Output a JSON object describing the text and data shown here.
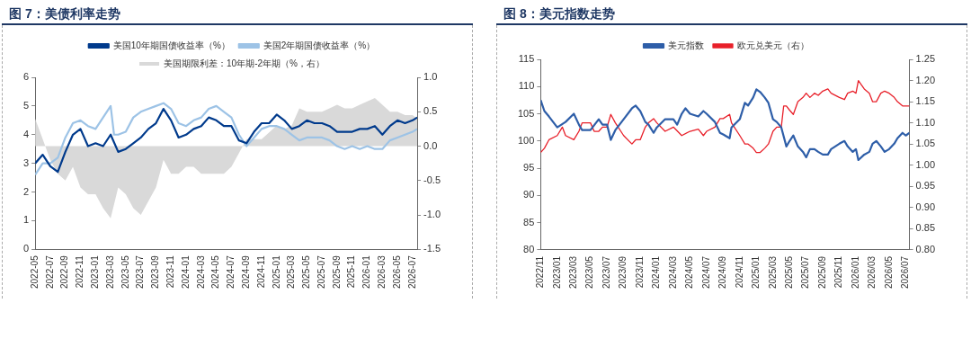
{
  "chart_data": [
    {
      "type": "line",
      "title": "图 7：美债利率走势",
      "series": [
        {
          "name": "美国期限利差：10年期-2年期（%，右）",
          "type": "area",
          "axis": "y2",
          "color": "#d9d9d9",
          "x": [
            "2022-05",
            "2022-06",
            "2022-07",
            "2022-08",
            "2022-09",
            "2022-10",
            "2022-11",
            "2022-12",
            "2023-01",
            "2023-02",
            "2023-03",
            "2023-04",
            "2023-05",
            "2023-06",
            "2023-07",
            "2023-08",
            "2023-09",
            "2023-10",
            "2023-11",
            "2023-12",
            "2024-01",
            "2024-02",
            "2024-03",
            "2024-04",
            "2024-05",
            "2024-06",
            "2024-07",
            "2024-08",
            "2024-09",
            "2024-10",
            "2024-11",
            "2024-12",
            "2025-01",
            "2025-02",
            "2025-03",
            "2025-04",
            "2025-05",
            "2025-06",
            "2025-07",
            "2025-08",
            "2025-09",
            "2025-10",
            "2025-11",
            "2025-12",
            "2026-01",
            "2026-02",
            "2026-03",
            "2026-04",
            "2026-05",
            "2026-06",
            "2026-07",
            "2026-07-20"
          ],
          "values": [
            0.4,
            0.1,
            -0.2,
            -0.4,
            -0.5,
            -0.3,
            -0.6,
            -0.7,
            -0.7,
            -0.9,
            -1.05,
            -0.6,
            -0.7,
            -0.9,
            -1.0,
            -0.8,
            -0.6,
            -0.2,
            -0.4,
            -0.4,
            -0.3,
            -0.3,
            -0.4,
            -0.4,
            -0.4,
            -0.4,
            -0.3,
            -0.1,
            0.1,
            0.1,
            0.1,
            0.2,
            0.3,
            0.25,
            0.3,
            0.55,
            0.5,
            0.5,
            0.5,
            0.55,
            0.6,
            0.55,
            0.55,
            0.6,
            0.65,
            0.7,
            0.6,
            0.5,
            0.5,
            0.45,
            0.45,
            0.4
          ]
        },
        {
          "name": "美国10年期国债收益率（%）",
          "color": "#003a8c",
          "x": [
            "2022-05",
            "2022-06",
            "2022-07",
            "2022-08",
            "2022-09",
            "2022-10",
            "2022-11",
            "2022-12",
            "2023-01",
            "2023-02",
            "2023-03",
            "2023-04",
            "2023-05",
            "2023-06",
            "2023-07",
            "2023-08",
            "2023-09",
            "2023-10",
            "2023-11",
            "2023-12",
            "2024-01",
            "2024-02",
            "2024-03",
            "2024-04",
            "2024-05",
            "2024-06",
            "2024-07",
            "2024-08",
            "2024-09",
            "2024-10",
            "2024-11",
            "2024-12",
            "2025-01",
            "2025-02",
            "2025-03",
            "2025-04",
            "2025-05",
            "2025-06",
            "2025-07",
            "2025-08",
            "2025-09",
            "2025-10",
            "2025-11",
            "2025-12",
            "2026-01",
            "2026-02",
            "2026-03",
            "2026-04",
            "2026-05",
            "2026-06",
            "2026-07",
            "2026-07-20"
          ],
          "values": [
            3.0,
            3.3,
            2.9,
            2.7,
            3.4,
            4.0,
            4.2,
            3.6,
            3.7,
            3.6,
            4.0,
            3.4,
            3.5,
            3.7,
            3.9,
            4.2,
            4.4,
            4.9,
            4.5,
            3.9,
            4.0,
            4.2,
            4.3,
            4.6,
            4.5,
            4.3,
            4.3,
            3.8,
            3.7,
            4.1,
            4.4,
            4.4,
            4.7,
            4.5,
            4.2,
            4.3,
            4.5,
            4.4,
            4.4,
            4.3,
            4.1,
            4.1,
            4.1,
            4.2,
            4.2,
            4.3,
            4.0,
            4.3,
            4.5,
            4.4,
            4.5,
            4.6
          ]
        },
        {
          "name": "美国2年期国债收益率（%）",
          "color": "#9dc3e6",
          "x": [
            "2022-05",
            "2022-06",
            "2022-07",
            "2022-08",
            "2022-09",
            "2022-10",
            "2022-11",
            "2022-12",
            "2023-01",
            "2023-02",
            "2023-03",
            "2023-03-15",
            "2023-04",
            "2023-05",
            "2023-06",
            "2023-07",
            "2023-08",
            "2023-09",
            "2023-10",
            "2023-11",
            "2023-12",
            "2024-01",
            "2024-02",
            "2024-03",
            "2024-04",
            "2024-05",
            "2024-06",
            "2024-07",
            "2024-08",
            "2024-09",
            "2024-10",
            "2024-11",
            "2024-12",
            "2025-01",
            "2025-02",
            "2025-03",
            "2025-04",
            "2025-05",
            "2025-06",
            "2025-07",
            "2025-08",
            "2025-09",
            "2025-10",
            "2025-11",
            "2025-12",
            "2026-01",
            "2026-02",
            "2026-03",
            "2026-04",
            "2026-05",
            "2026-06",
            "2026-07",
            "2026-07-20"
          ],
          "values": [
            2.6,
            3.0,
            3.0,
            3.2,
            3.9,
            4.4,
            4.5,
            4.3,
            4.2,
            4.6,
            5.0,
            4.0,
            4.0,
            4.1,
            4.6,
            4.8,
            4.9,
            5.0,
            5.1,
            4.9,
            4.4,
            4.3,
            4.5,
            4.6,
            4.9,
            5.0,
            4.8,
            4.6,
            4.0,
            3.6,
            3.9,
            4.2,
            4.3,
            4.3,
            4.2,
            4.0,
            3.8,
            3.9,
            3.9,
            3.9,
            3.8,
            3.6,
            3.5,
            3.6,
            3.5,
            3.6,
            3.5,
            3.5,
            3.8,
            3.9,
            4.0,
            4.1,
            4.2
          ]
        }
      ],
      "xlim": [
        "2022-05",
        "2026-07-20"
      ],
      "xticks": [
        "2022-05",
        "2022-07",
        "2022-09",
        "2022-11",
        "2023-01",
        "2023-03",
        "2023-05",
        "2023-07",
        "2023-09",
        "2023-11",
        "2024-01",
        "2024-03",
        "2024-05",
        "2024-07",
        "2024-09",
        "2024-11",
        "2025-01",
        "2025-03",
        "2025-05",
        "2025-07",
        "2025-09",
        "2025-11",
        "2026-01",
        "2026-03",
        "2026-05",
        "2026-07"
      ],
      "ylim": [
        0,
        6
      ],
      "yticks": [
        0,
        1,
        2,
        3,
        4,
        5,
        6
      ],
      "y2lim": [
        -1.5,
        1.0
      ],
      "y2ticks": [
        {
          "value": -1.5,
          "label": "-1.5"
        },
        {
          "value": -1.0,
          "label": "-1.0"
        },
        {
          "value": -0.5,
          "label": "-0.5"
        },
        {
          "value": 0,
          "label": "0.0"
        },
        {
          "value": 0.5,
          "label": "0.5"
        },
        {
          "value": 1.0,
          "label": "1.0"
        }
      ],
      "legend": "top"
    },
    {
      "type": "line",
      "title": "图 8：美元指数走势",
      "series": [
        {
          "name": "美元指数",
          "color": "#2e5ea8",
          "x": [
            "2022-11",
            "2022-11-15",
            "2022-12",
            "2023-01",
            "2023-02",
            "2023-03",
            "2023-03-20",
            "2023-04",
            "2023-05",
            "2023-06",
            "2023-06-15",
            "2023-07",
            "2023-07-15",
            "2023-08",
            "2023-09",
            "2023-10",
            "2023-10-15",
            "2023-11",
            "2023-11-20",
            "2023-12",
            "2023-12-20",
            "2024-01",
            "2024-02",
            "2024-03",
            "2024-03-15",
            "2024-04",
            "2024-04-15",
            "2024-05",
            "2024-06",
            "2024-06-20",
            "2024-07",
            "2024-08",
            "2024-08-20",
            "2024-09",
            "2024-09-25",
            "2024-10",
            "2024-11",
            "2024-11-20",
            "2024-12",
            "2024-12-20",
            "2025-01",
            "2025-01-15",
            "2025-02",
            "2025-02-15",
            "2025-03",
            "2025-03-15",
            "2025-04",
            "2025-04-20",
            "2025-05",
            "2025-05-15",
            "2025-06",
            "2025-06-20",
            "2025-07",
            "2025-07-15",
            "2025-08",
            "2025-08-15",
            "2025-09",
            "2025-09-20",
            "2025-10",
            "2025-11",
            "2025-11-20",
            "2025-12",
            "2025-12-20",
            "2026-01",
            "2026-01-10",
            "2026-02",
            "2026-02-20",
            "2026-03",
            "2026-03-15",
            "2026-04",
            "2026-04-15",
            "2026-05",
            "2026-05-20",
            "2026-06",
            "2026-06-20",
            "2026-07",
            "2026-07-15"
          ],
          "values": [
            107.5,
            105.5,
            104.5,
            102.5,
            103.5,
            105,
            103,
            102,
            102,
            104,
            103,
            103,
            100.2,
            102,
            104,
            106,
            106.5,
            105.5,
            103.5,
            103,
            101.5,
            102.5,
            104,
            104,
            103,
            105,
            106,
            105,
            104.5,
            105.5,
            105,
            103.5,
            101.5,
            101.2,
            100.5,
            102.5,
            104,
            107,
            106.5,
            108,
            109.5,
            109,
            108,
            107,
            104,
            103.5,
            102.5,
            99,
            100,
            101,
            99,
            98,
            97,
            98.5,
            98.5,
            98,
            97.5,
            97.5,
            98.5,
            99.5,
            100,
            99,
            98,
            98.5,
            96.5,
            97.5,
            98,
            99.5,
            100,
            99,
            98,
            98.5,
            99.5,
            100.5,
            101.5,
            101,
            101.5
          ]
        },
        {
          "name": "欧元兑美元（右）",
          "axis": "y2",
          "color": "#e8202a",
          "x": [
            "2022-11",
            "2022-11-15",
            "2022-12",
            "2023-01",
            "2023-01-20",
            "2023-02",
            "2023-03",
            "2023-03-20",
            "2023-04",
            "2023-05",
            "2023-05-15",
            "2023-06",
            "2023-06-15",
            "2023-07",
            "2023-07-15",
            "2023-08",
            "2023-09",
            "2023-10",
            "2023-10-15",
            "2023-11",
            "2023-11-20",
            "2023-12",
            "2023-12-20",
            "2024-01",
            "2024-02",
            "2024-03",
            "2024-04",
            "2024-05",
            "2024-06",
            "2024-06-20",
            "2024-07",
            "2024-08",
            "2024-08-20",
            "2024-09",
            "2024-09-25",
            "2024-10",
            "2024-11",
            "2024-11-20",
            "2024-12",
            "2024-12-20",
            "2025-01",
            "2025-01-15",
            "2025-02",
            "2025-02-15",
            "2025-03",
            "2025-03-15",
            "2025-04",
            "2025-04-10",
            "2025-04-20",
            "2025-05",
            "2025-05-15",
            "2025-06",
            "2025-06-20",
            "2025-07",
            "2025-07-15",
            "2025-08",
            "2025-08-15",
            "2025-09",
            "2025-09-20",
            "2025-10",
            "2025-11",
            "2025-11-20",
            "2025-12",
            "2025-12-20",
            "2026-01",
            "2026-01-10",
            "2026-02",
            "2026-02-20",
            "2026-03",
            "2026-03-15",
            "2026-04",
            "2026-04-15",
            "2026-05",
            "2026-05-20",
            "2026-06",
            "2026-06-20",
            "2026-07",
            "2026-07-15"
          ],
          "values": [
            1.03,
            1.04,
            1.06,
            1.07,
            1.09,
            1.07,
            1.06,
            1.08,
            1.1,
            1.1,
            1.08,
            1.08,
            1.09,
            1.09,
            1.12,
            1.1,
            1.07,
            1.05,
            1.06,
            1.06,
            1.09,
            1.1,
            1.11,
            1.1,
            1.08,
            1.09,
            1.07,
            1.08,
            1.085,
            1.07,
            1.08,
            1.09,
            1.11,
            1.11,
            1.12,
            1.1,
            1.07,
            1.05,
            1.05,
            1.04,
            1.03,
            1.03,
            1.04,
            1.05,
            1.08,
            1.09,
            1.09,
            1.14,
            1.14,
            1.13,
            1.12,
            1.15,
            1.16,
            1.17,
            1.16,
            1.17,
            1.165,
            1.175,
            1.18,
            1.17,
            1.16,
            1.155,
            1.17,
            1.175,
            1.17,
            1.2,
            1.18,
            1.17,
            1.15,
            1.15,
            1.17,
            1.175,
            1.17,
            1.16,
            1.15,
            1.14,
            1.14,
            1.14
          ]
        }
      ],
      "xlim": [
        "2022-11",
        "2026-07-15"
      ],
      "xticks": [
        {
          "value": "2022-11",
          "label": "2022/11"
        },
        {
          "value": "2023-01",
          "label": "2023/01"
        },
        {
          "value": "2023-03",
          "label": "2023/03"
        },
        {
          "value": "2023-05",
          "label": "2023/05"
        },
        {
          "value": "2023-07",
          "label": "2023/07"
        },
        {
          "value": "2023-09",
          "label": "2023/09"
        },
        {
          "value": "2023-11",
          "label": "2023/11"
        },
        {
          "value": "2024-01",
          "label": "2024/01"
        },
        {
          "value": "2024-03",
          "label": "2024/03"
        },
        {
          "value": "2024-05",
          "label": "2024/05"
        },
        {
          "value": "2024-07",
          "label": "2024/07"
        },
        {
          "value": "2024-09",
          "label": "2024/09"
        },
        {
          "value": "2024-11",
          "label": "2024/11"
        },
        {
          "value": "2025-01",
          "label": "2025/01"
        },
        {
          "value": "2025-03",
          "label": "2025/03"
        },
        {
          "value": "2025-05",
          "label": "2025/05"
        },
        {
          "value": "2025-07",
          "label": "2025/07"
        },
        {
          "value": "2025-09",
          "label": "2025/09"
        },
        {
          "value": "2025-11",
          "label": "2025/11"
        },
        {
          "value": "2026-01",
          "label": "2026/01"
        },
        {
          "value": "2026-03",
          "label": "2026/03"
        },
        {
          "value": "2026-05",
          "label": "2026/05"
        },
        {
          "value": "2026-07",
          "label": "2026/07"
        }
      ],
      "ylim": [
        80,
        115
      ],
      "yticks": [
        80,
        85,
        90,
        95,
        100,
        105,
        110,
        115
      ],
      "y2lim": [
        0.8,
        1.25
      ],
      "y2ticks": [
        {
          "value": 0.8,
          "label": "0.80"
        },
        {
          "value": 0.85,
          "label": "0.85"
        },
        {
          "value": 0.9,
          "label": "0.90"
        },
        {
          "value": 0.95,
          "label": "0.95"
        },
        {
          "value": 1.0,
          "label": "1.00"
        },
        {
          "value": 1.05,
          "label": "1.05"
        },
        {
          "value": 1.1,
          "label": "1.10"
        },
        {
          "value": 1.15,
          "label": "1.15"
        },
        {
          "value": 1.2,
          "label": "1.20"
        },
        {
          "value": 1.25,
          "label": "1.25"
        }
      ],
      "legend": "top"
    }
  ]
}
